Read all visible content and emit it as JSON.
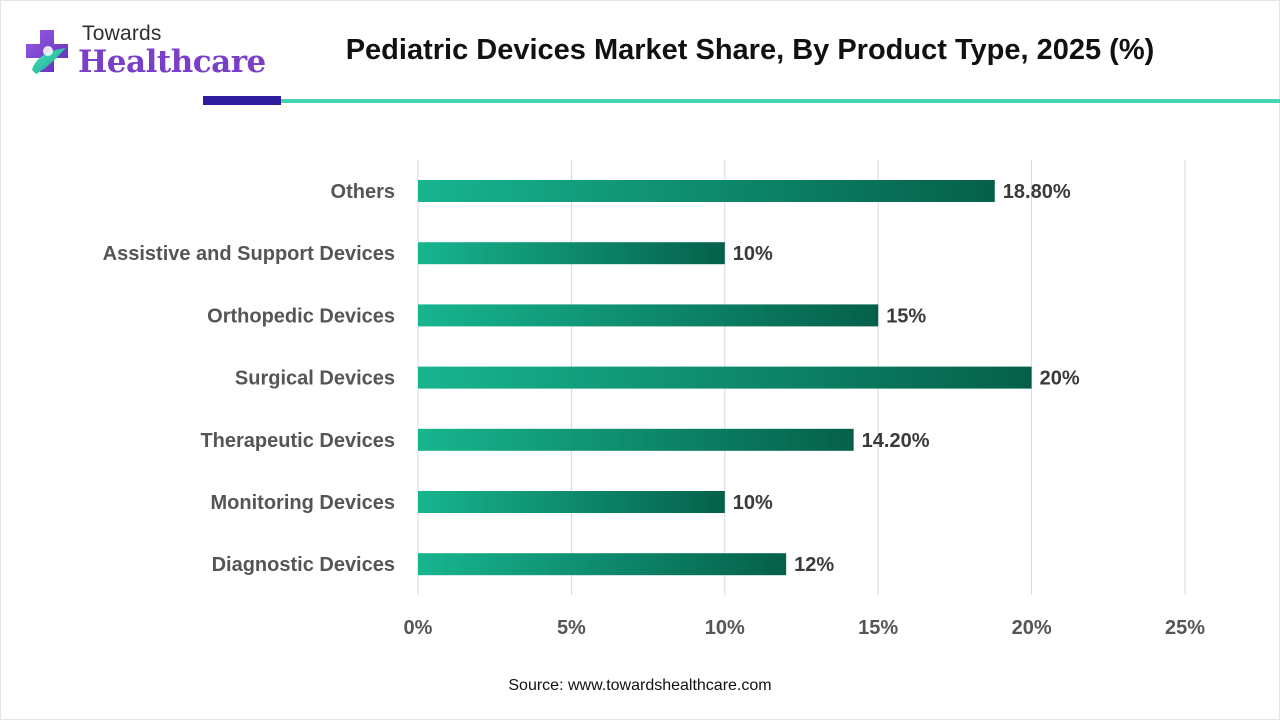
{
  "logo": {
    "top_text": "Towards",
    "bottom_text": "Healthcare"
  },
  "colors": {
    "bar_start": "#17b58f",
    "bar_end": "#05604a",
    "accent_dark": "#2f1ea0",
    "accent_teal": "#46d3b5",
    "logo_purple": "#7a3fc7"
  },
  "chart_data": {
    "type": "bar",
    "orientation": "horizontal",
    "title": "Pediatric Devices Market Share, By Product Type, 2025 (%)",
    "xlabel": "",
    "ylabel": "",
    "categories": [
      "Others",
      "Assistive and Support Devices",
      "Orthopedic Devices",
      "Surgical Devices",
      "Therapeutic Devices",
      "Monitoring Devices",
      "Diagnostic Devices"
    ],
    "values": [
      18.8,
      10,
      15,
      20,
      14.2,
      10,
      12
    ],
    "value_labels": [
      "18.80%",
      "10%",
      "15%",
      "20%",
      "14.20%",
      "10%",
      "12%"
    ],
    "xlim": [
      0,
      25
    ],
    "xticks": [
      0,
      5,
      10,
      15,
      20,
      25
    ],
    "xtick_labels": [
      "0%",
      "5%",
      "10%",
      "15%",
      "20%",
      "25%"
    ],
    "grid": true,
    "legend": "none"
  },
  "source": "Source: www.towardshealthcare.com"
}
